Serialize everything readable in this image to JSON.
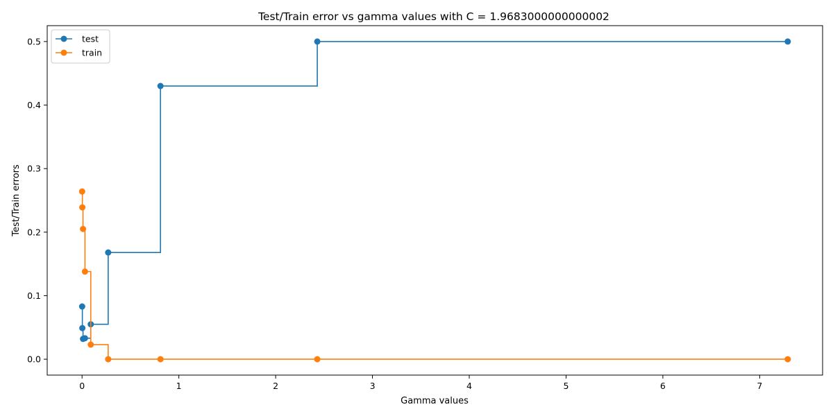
{
  "chart_data": {
    "type": "line",
    "step": "post",
    "title": "Test/Train error vs gamma values with C = 1.9683000000000002",
    "xlabel": "Gamma values",
    "ylabel": "Test/Train errors",
    "xlim": [
      -0.36,
      7.65
    ],
    "ylim": [
      -0.025,
      0.525
    ],
    "xticks": [
      0,
      1,
      2,
      3,
      4,
      5,
      6,
      7
    ],
    "yticks": [
      0.0,
      0.1,
      0.2,
      0.3,
      0.4,
      0.5
    ],
    "grid": false,
    "legend": "top-left",
    "series": [
      {
        "name": "test",
        "color": "#1f77b4",
        "marker": "circle",
        "x": [
          0.001,
          0.003,
          0.01,
          0.03,
          0.09,
          0.27,
          0.81,
          2.43,
          7.29
        ],
        "y": [
          0.083,
          0.049,
          0.032,
          0.033,
          0.055,
          0.168,
          0.43,
          0.5,
          0.5
        ]
      },
      {
        "name": "train",
        "color": "#ff7f0e",
        "marker": "circle",
        "x": [
          0.001,
          0.003,
          0.01,
          0.03,
          0.09,
          0.27,
          0.81,
          2.43,
          7.29
        ],
        "y": [
          0.264,
          0.239,
          0.205,
          0.138,
          0.023,
          0.0,
          0.0,
          0.0,
          0.0
        ]
      }
    ]
  }
}
